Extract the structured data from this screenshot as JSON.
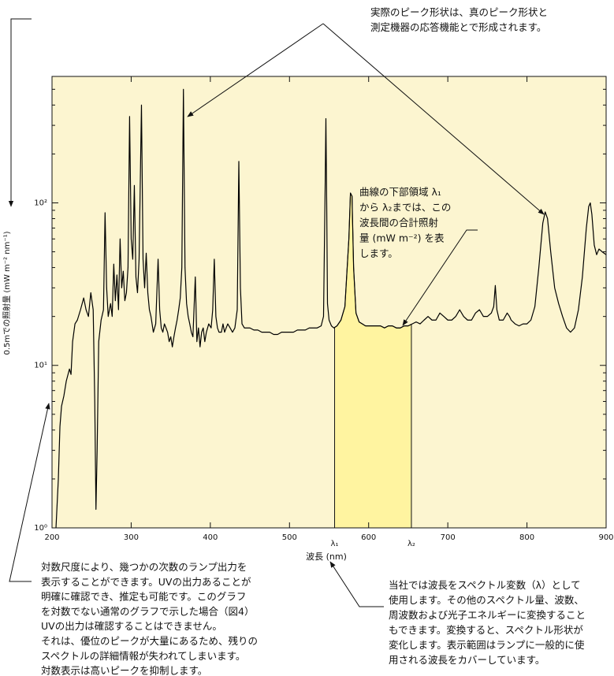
{
  "chart_data": {
    "type": "line",
    "xlabel": "波長 (nm)",
    "ylabel": "0.5mでの照射量 (mW m⁻² nm⁻¹)",
    "log_y": true,
    "color": "#000000",
    "background": "#fcf5d0",
    "xlim": [
      200,
      900
    ],
    "xticks": [
      200,
      300,
      400,
      500,
      600,
      700,
      800,
      900
    ],
    "ylim": [
      1,
      600
    ],
    "yticks": [
      {
        "value": 1,
        "label": "10⁰"
      },
      {
        "value": 10,
        "label": "10¹"
      },
      {
        "value": 100,
        "label": "10²"
      }
    ],
    "yminor_ticks": [
      2,
      3,
      4,
      5,
      6,
      7,
      8,
      9,
      20,
      30,
      40,
      50,
      60,
      70,
      80,
      90,
      200,
      300,
      400,
      500
    ],
    "shaded_region": {
      "x": [
        557,
        654
      ],
      "labels": [
        "λ₁",
        "λ₂"
      ],
      "color": "#fff4a0"
    },
    "x": [
      205,
      208,
      210,
      212,
      215,
      218,
      222,
      224,
      226,
      229,
      232,
      236,
      240,
      243,
      246,
      249,
      252,
      254,
      255.5,
      257,
      259,
      262,
      265,
      267,
      269,
      271,
      274,
      276,
      278,
      280,
      282,
      284,
      286,
      288,
      290,
      292,
      294,
      296,
      298,
      300,
      302,
      304,
      306,
      308,
      310,
      313,
      315,
      317,
      319,
      321,
      323,
      325,
      328,
      331,
      334,
      336,
      338,
      340,
      342,
      344,
      346,
      348,
      350,
      352,
      354,
      356,
      358,
      360,
      362,
      364,
      366,
      368,
      370,
      372,
      374,
      376,
      378,
      381,
      383,
      385,
      387,
      389,
      391,
      393,
      395,
      398,
      401,
      403,
      405,
      407,
      409,
      411,
      414,
      416,
      418,
      420,
      422,
      425,
      428,
      431,
      434,
      436,
      438,
      440,
      443,
      446,
      450,
      455,
      460,
      465,
      470,
      475,
      480,
      485,
      490,
      495,
      500,
      505,
      510,
      515,
      520,
      525,
      530,
      535,
      540,
      543,
      545,
      546,
      547,
      548,
      550,
      553,
      556,
      560,
      565,
      570,
      575,
      577,
      579,
      581,
      584,
      588,
      592,
      596,
      600,
      605,
      610,
      615,
      620,
      625,
      630,
      635,
      640,
      645,
      650,
      655,
      660,
      665,
      670,
      675,
      680,
      685,
      690,
      695,
      700,
      705,
      710,
      715,
      720,
      725,
      730,
      735,
      740,
      745,
      750,
      755,
      758,
      760,
      762,
      765,
      770,
      775,
      778,
      780,
      785,
      790,
      795,
      800,
      805,
      810,
      815,
      820,
      823,
      826,
      830,
      835,
      840,
      845,
      850,
      855,
      860,
      865,
      870,
      875,
      878,
      880,
      882,
      885,
      888,
      891,
      895,
      900
    ],
    "values": [
      1.0,
      2.0,
      4.2,
      5.6,
      6.5,
      8.0,
      9.5,
      8.8,
      14,
      18,
      19,
      22,
      26,
      22,
      20,
      28,
      22,
      6,
      1.3,
      3,
      14,
      19,
      22,
      87,
      30,
      20,
      24,
      20,
      42,
      25,
      36,
      22,
      60,
      30,
      38,
      25,
      28,
      40,
      340,
      60,
      45,
      128,
      35,
      28,
      45,
      400,
      45,
      30,
      49,
      28,
      22,
      20,
      16,
      18,
      45,
      22,
      17,
      16,
      18,
      17,
      16,
      14,
      15,
      13,
      15,
      17,
      19,
      22,
      26,
      40,
      500,
      40,
      24,
      20,
      18,
      16,
      15,
      35,
      14,
      17,
      13,
      16,
      17,
      14,
      16,
      18,
      17,
      22,
      45,
      20,
      17,
      16,
      16,
      18,
      16,
      17,
      18,
      17,
      16,
      17,
      22,
      180,
      30,
      18,
      17,
      17,
      17,
      16.5,
      16.5,
      16,
      16,
      16,
      15.5,
      15.5,
      16,
      16,
      16,
      16,
      16.5,
      16.5,
      16.5,
      17,
      17,
      17,
      17.5,
      20,
      120,
      330,
      100,
      24,
      19,
      17.5,
      17,
      17.5,
      19,
      23,
      60,
      115,
      110,
      40,
      21,
      18.5,
      18,
      17.5,
      17.5,
      17.5,
      17.5,
      17.5,
      17,
      17.5,
      17.5,
      17,
      17,
      17.5,
      17.5,
      18,
      18.5,
      18,
      19,
      20,
      19,
      19,
      21,
      20,
      19,
      19,
      20,
      22,
      20,
      19,
      19,
      21,
      22,
      20,
      20,
      21,
      23,
      31,
      22,
      19,
      19,
      21,
      20,
      19,
      18,
      17.5,
      18,
      18,
      19,
      23,
      40,
      75,
      88,
      80,
      50,
      30,
      24,
      20,
      17,
      16,
      17,
      22,
      35,
      70,
      95,
      100,
      85,
      55,
      48,
      52,
      50,
      48
    ],
    "annotations": [
      {
        "lines": [
          "実際のピーク形状は、真のピーク形状と",
          "測定機器の応答機能とで形成されます。"
        ]
      },
      {
        "lines": [
          "曲線の下部領域 λ₁",
          "から λ₂までは、この",
          "波長間の合計照射",
          "量 (mW m⁻²) を表",
          "します。"
        ]
      },
      {
        "lines": [
          "対数尺度により、幾つかの次数のランプ出力を",
          "表示することができます。UVの出力あることが",
          "明確に確認でき、推定も可能です。このグラフ",
          "を対数でない通常のグラフで示した場合（図4）",
          "UVの出力は確認することはできません。",
          "それは、優位のピークが大量にあるため、残りの",
          "スペクトルの詳細情報が失われてしまいます。",
          "対数表示は高いピークを抑制します。"
        ]
      },
      {
        "lines": [
          "当社では波長をスペクトル変数（λ）として",
          "使用します。その他のスペクトル量、波数、",
          "周波数および光子エネルギーに変換すること",
          "もできます。変換すると、スペクトル形状が",
          "変化します。表示範囲はランプに一般的に使",
          "用される波長をカバーしています。"
        ]
      }
    ]
  }
}
